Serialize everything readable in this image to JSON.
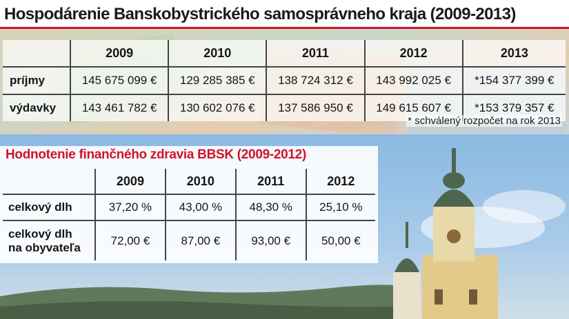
{
  "title": "Hospodárenie Banskobystrického samosprávneho kraja (2009-2013)",
  "budget_table": {
    "years": [
      "2009",
      "2010",
      "2011",
      "2012",
      "2013"
    ],
    "rows": [
      {
        "label": "príjmy",
        "values": [
          "145 675 099 €",
          "129 285 385 €",
          "138 724 312 €",
          "143 992 025 €",
          "*154 377 399 €"
        ]
      },
      {
        "label": "výdavky",
        "values": [
          "143 461 782 €",
          "130 602 076 €",
          "137 586 950 €",
          "149 615 607 €",
          "*153 379 357 €"
        ]
      }
    ],
    "footnote": "* schválený rozpočet na rok 2013"
  },
  "health_table": {
    "title": "Hodnotenie finančného zdravia BBSK (2009-2012)",
    "years": [
      "2009",
      "2010",
      "2011",
      "2012"
    ],
    "rows": [
      {
        "label_line1": "celkový dlh",
        "label_line2": "",
        "values": [
          "37,20 %",
          "43,00 %",
          "48,30 %",
          "25,10 %"
        ]
      },
      {
        "label_line1": "celkový dlh",
        "label_line2": "na obyvateľa",
        "values": [
          "72,00 €",
          "87,00 €",
          "93,00 €",
          "50,00 €"
        ]
      }
    ]
  },
  "colors": {
    "accent_red": "#d1122a",
    "sky_blue": "#7fb2de"
  }
}
